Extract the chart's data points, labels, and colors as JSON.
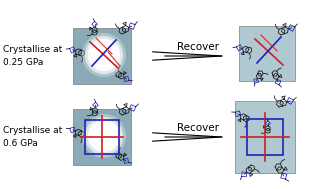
{
  "background_color": "#ffffff",
  "top_left_label": "Crystallise at\n0.25 GPa",
  "bottom_left_label": "Crystallise at\n0.6 GPa",
  "top_arrow_label": "Recover",
  "bottom_arrow_label": "Recover",
  "label_fontsize": 6.5,
  "arrow_fontsize": 7.5,
  "figsize": [
    3.24,
    1.89
  ],
  "dpi": 100,
  "panel_bg_left": "#8aaab5",
  "panel_bg_right": "#b0c8d0",
  "molecule_color": "#111111",
  "red": "#cc2020",
  "blue": "#2020bb"
}
